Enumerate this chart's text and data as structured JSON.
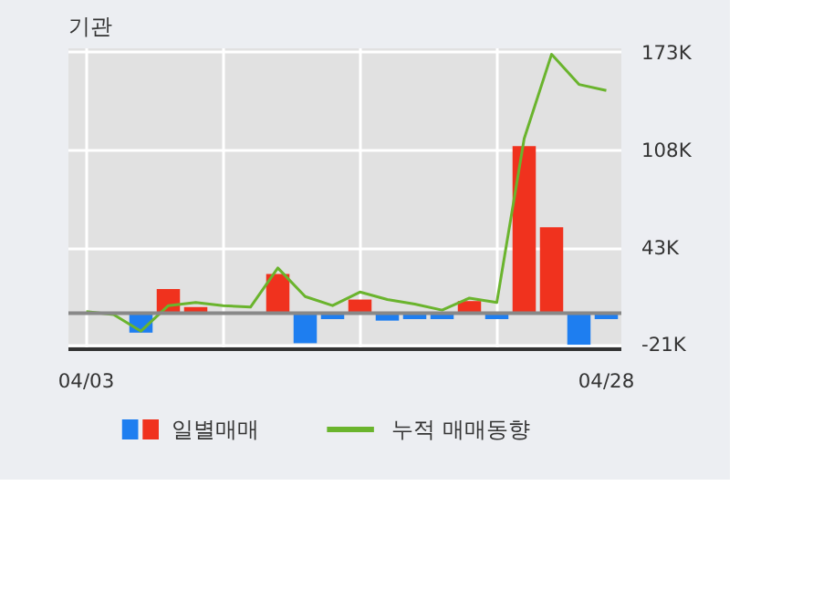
{
  "chart_data": {
    "type": "bar",
    "title": "기관",
    "categories": [
      "04/03",
      null,
      null,
      null,
      null,
      null,
      null,
      null,
      null,
      null,
      null,
      null,
      null,
      null,
      null,
      null,
      null,
      null,
      null,
      "04/28"
    ],
    "series": [
      {
        "name": "일별매매",
        "colors": [
          "#1e7ef0",
          "#1e7ef0",
          "#1e7ef0",
          "#f0321e",
          "#f0321e",
          "#1e7ef0",
          "#1e7ef0",
          "#f0321e",
          "#1e7ef0",
          "#1e7ef0",
          "#f0321e",
          "#1e7ef0",
          "#1e7ef0",
          "#1e7ef0",
          "#f0321e",
          "#1e7ef0",
          "#f0321e",
          "#f0321e",
          "#1e7ef0",
          "#1e7ef0"
        ],
        "values": [
          0,
          0,
          -13,
          16,
          4,
          0,
          0,
          26,
          -20,
          -4,
          9,
          -5,
          -4,
          -4,
          8,
          -4,
          111,
          57,
          -21,
          -4
        ]
      },
      {
        "name": "누적 매매동향",
        "type": "line",
        "color": "#6ab42d",
        "values": [
          1,
          -1,
          -12,
          5,
          7,
          5,
          4,
          30,
          11,
          5,
          14,
          9,
          6,
          2,
          10,
          7,
          116,
          172,
          152,
          148
        ]
      }
    ],
    "ylim": [
      -24,
      176
    ],
    "yticks": [
      {
        "value": -21,
        "label": "-21K"
      },
      {
        "value": 43,
        "label": "43K"
      },
      {
        "value": 108,
        "label": "108K"
      },
      {
        "value": 173,
        "label": "173K"
      }
    ],
    "ref_lines": [
      {
        "axis": "y",
        "value": 0,
        "color": "#888888"
      }
    ],
    "grid": true,
    "legend": "bottom"
  }
}
